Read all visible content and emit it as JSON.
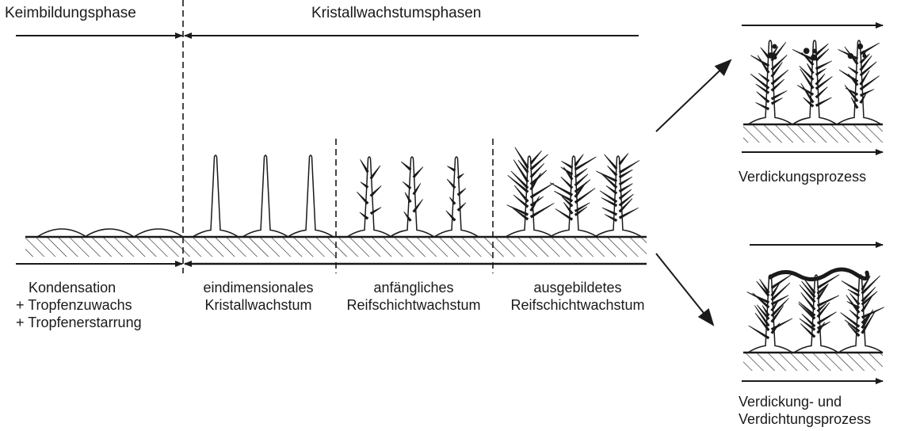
{
  "header": {
    "nucleation_phase": "Keimbildungsphase",
    "growth_phases": "Kristallwachstumsphasen"
  },
  "stages": [
    {
      "lines": [
        "Kondensation",
        "+ Tropfenzuwachs",
        "+ Tropfenerstarrung"
      ]
    },
    {
      "lines": [
        "eindimensionales",
        "Kristallwachstum"
      ]
    },
    {
      "lines": [
        "anfängliches",
        "Reifschichtwachstum"
      ]
    },
    {
      "lines": [
        "ausgebildetes",
        "Reifschichtwachstum"
      ]
    }
  ],
  "outcomes": {
    "thickening": "Verdickungsprozess",
    "densification": [
      "Verdickung- und",
      "Verdichtungsprozess"
    ]
  },
  "colors": {
    "ink": "#1a1a1a",
    "background": "#ffffff"
  }
}
